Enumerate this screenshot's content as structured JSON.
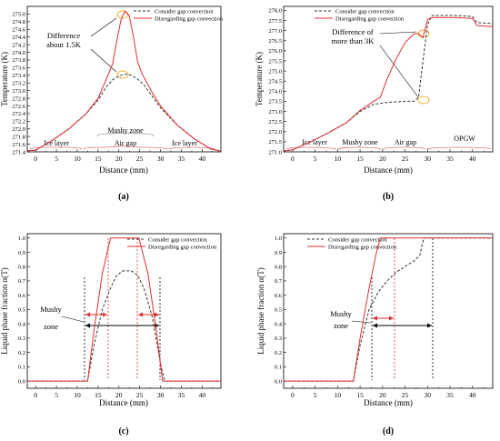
{
  "chart_data": [
    {
      "type": "line",
      "panel_label": "(a)",
      "xlabel": "Distance (mm)",
      "ylabel": "Temperature (K)",
      "xlim": [
        -2,
        44.5
      ],
      "ylim": [
        271.4,
        275.2
      ],
      "xticks": [
        "0",
        "5",
        "10",
        "15",
        "20",
        "25",
        "30",
        "35",
        "40"
      ],
      "yticks": [
        "271.4",
        "271.6",
        "271.8",
        "272.0",
        "272.2",
        "272.4",
        "272.6",
        "272.8",
        "273.0",
        "273.2",
        "273.4",
        "273.6",
        "273.8",
        "274.0",
        "274.2",
        "274.4",
        "274.6",
        "274.8",
        "275.0"
      ],
      "legend": [
        "Consider gap convection",
        "Disregarding gap convection"
      ],
      "annotations": [
        "Difference",
        "about 1.5K"
      ],
      "region_labels": [
        "Ice layer",
        "Mushy zone",
        "Air gap",
        "Ice layer"
      ],
      "series": [
        {
          "name": "Consider gap convection",
          "style": "dashed",
          "color": "#333333",
          "x": [
            -2,
            0,
            4,
            8,
            12,
            15,
            17,
            18.5,
            20,
            21.5,
            23,
            24.5,
            26,
            28,
            30,
            34,
            38,
            42,
            44.5
          ],
          "y": [
            271.43,
            271.44,
            271.7,
            272.0,
            272.38,
            272.75,
            273.1,
            273.28,
            273.38,
            273.43,
            273.4,
            273.3,
            273.15,
            272.85,
            272.55,
            272.1,
            271.75,
            271.48,
            271.42
          ]
        },
        {
          "name": "Disregarding gap convection",
          "style": "solid",
          "color": "#e03030",
          "x": [
            -2,
            0,
            4,
            8,
            12,
            15,
            17,
            18.5,
            19.5,
            20.5,
            21.5,
            22.5,
            23.5,
            24.5,
            25.5,
            28,
            30,
            34,
            38,
            42,
            44.5
          ],
          "y": [
            271.43,
            271.44,
            271.7,
            272.0,
            272.38,
            272.8,
            273.3,
            273.7,
            274.3,
            274.85,
            275.08,
            274.95,
            274.4,
            273.75,
            273.45,
            272.95,
            272.6,
            272.1,
            271.75,
            271.48,
            271.42
          ]
        }
      ]
    },
    {
      "type": "line",
      "panel_label": "(b)",
      "xlabel": "Distance (mm)",
      "ylabel": "Temperature (K)",
      "xlim": [
        -2,
        44.5
      ],
      "ylim": [
        271.0,
        278.2
      ],
      "xticks": [
        "0",
        "5",
        "10",
        "15",
        "20",
        "25",
        "30",
        "35",
        "40"
      ],
      "yticks": [
        "271.0",
        "271.5",
        "272.0",
        "272.5",
        "273.0",
        "273.5",
        "274.0",
        "274.5",
        "275.0",
        "275.5",
        "276.0",
        "276.5",
        "277.0",
        "277.5",
        "278.0"
      ],
      "legend": [
        "Consider gap convection",
        "Disregarding gap convection"
      ],
      "annotations": [
        "Difference of",
        "more than 3K"
      ],
      "region_labels": [
        "Ice layer",
        "Mushy zone",
        "Air gap",
        "OPGW"
      ],
      "series": [
        {
          "name": "Consider gap convection",
          "style": "dashed",
          "color": "#333333",
          "x": [
            -2,
            0,
            4,
            8,
            12,
            15,
            18,
            21,
            25,
            27,
            28,
            29,
            30,
            31,
            36,
            40,
            41,
            44.5
          ],
          "y": [
            271.05,
            271.1,
            271.5,
            271.95,
            272.45,
            273.0,
            273.35,
            273.45,
            273.5,
            273.5,
            273.7,
            275.5,
            277.3,
            277.75,
            277.75,
            277.7,
            277.4,
            277.35
          ]
        },
        {
          "name": "Disregarding gap convection",
          "style": "solid",
          "color": "#e03030",
          "x": [
            -2,
            0,
            4,
            8,
            12,
            15,
            18,
            19.5,
            21,
            23,
            25,
            27,
            28,
            29,
            30,
            31,
            36,
            40,
            41,
            44.5
          ],
          "y": [
            271.05,
            271.1,
            271.5,
            271.95,
            272.45,
            273.05,
            273.5,
            273.7,
            274.6,
            275.6,
            276.4,
            276.85,
            276.85,
            276.65,
            277.55,
            277.65,
            277.65,
            277.6,
            277.25,
            277.2
          ]
        }
      ]
    },
    {
      "type": "line",
      "panel_label": "(c)",
      "xlabel": "Distance (mm)",
      "ylabel": "Liquid phase fraction α(T)",
      "xlim": [
        -2,
        44.5
      ],
      "ylim": [
        -0.05,
        1.03
      ],
      "xticks": [
        "0",
        "5",
        "10",
        "15",
        "20",
        "25",
        "30",
        "35",
        "40"
      ],
      "yticks": [
        "0.0",
        "0.1",
        "0.2",
        "0.3",
        "0.4",
        "0.5",
        "0.6",
        "0.7",
        "0.8",
        "0.9",
        "1.0"
      ],
      "legend": [
        "Consider gap convection",
        "Disregarding gap convection"
      ],
      "annotations": [
        "Mushy",
        "zone"
      ],
      "series": [
        {
          "name": "Consider gap convection",
          "style": "dashed",
          "color": "#333333",
          "x": [
            -2,
            12.5,
            14,
            16,
            18,
            19.5,
            21,
            23,
            24.5,
            26,
            28,
            30,
            31,
            44.5
          ],
          "y": [
            0,
            0,
            0.25,
            0.5,
            0.65,
            0.74,
            0.77,
            0.77,
            0.74,
            0.65,
            0.45,
            0.12,
            0,
            0
          ]
        },
        {
          "name": "Disregarding gap convection",
          "style": "solid",
          "color": "#e03030",
          "x": [
            -2,
            12.5,
            14,
            16,
            18,
            24.8,
            27,
            29,
            30.5,
            44.5
          ],
          "y": [
            0,
            0,
            0.35,
            0.75,
            1.0,
            1.0,
            0.75,
            0.35,
            0,
            0
          ]
        }
      ]
    },
    {
      "type": "line",
      "panel_label": "(d)",
      "xlabel": "Distance (mm)",
      "ylabel": "Liquid phase fraction α(T)",
      "xlim": [
        -2,
        44.5
      ],
      "ylim": [
        -0.05,
        1.03
      ],
      "xticks": [
        "0",
        "5",
        "10",
        "15",
        "20",
        "25",
        "30",
        "35",
        "40"
      ],
      "yticks": [
        "0.0",
        "0.1",
        "0.2",
        "0.3",
        "0.4",
        "0.5",
        "0.6",
        "0.7",
        "0.8",
        "0.9",
        "1.0"
      ],
      "legend": [
        "Consider gap convection",
        "Disregarding gap convection"
      ],
      "annotations": [
        "Mushy",
        "zone"
      ],
      "series": [
        {
          "name": "Consider gap convection",
          "style": "dashed",
          "color": "#333333",
          "x": [
            -2,
            13.5,
            15,
            17,
            19,
            21,
            23,
            25,
            27,
            28.3,
            28.8,
            29.2,
            44.5
          ],
          "y": [
            0,
            0,
            0.25,
            0.5,
            0.62,
            0.7,
            0.76,
            0.8,
            0.84,
            0.88,
            0.95,
            1.0,
            1.0
          ]
        },
        {
          "name": "Disregarding gap convection",
          "style": "solid",
          "color": "#e03030",
          "x": [
            -2,
            13.5,
            15,
            17,
            18.5,
            19.5,
            44.5
          ],
          "y": [
            0,
            0,
            0.3,
            0.65,
            0.88,
            1.0,
            1.0
          ]
        }
      ]
    }
  ]
}
